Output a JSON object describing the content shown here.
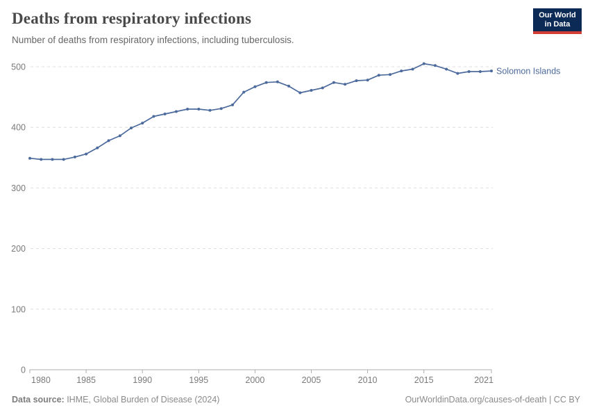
{
  "header": {
    "title": "Deaths from respiratory infections",
    "subtitle": "Number of deaths from respiratory infections, including tuberculosis.",
    "logo_line1": "Our World",
    "logo_line2": "in Data"
  },
  "chart_data": {
    "type": "line",
    "title": "Deaths from respiratory infections",
    "series": [
      {
        "name": "Solomon Islands",
        "x": [
          1980,
          1981,
          1982,
          1983,
          1984,
          1985,
          1986,
          1987,
          1988,
          1989,
          1990,
          1991,
          1992,
          1993,
          1994,
          1995,
          1996,
          1997,
          1998,
          1999,
          2000,
          2001,
          2002,
          2003,
          2004,
          2005,
          2006,
          2007,
          2008,
          2009,
          2010,
          2011,
          2012,
          2013,
          2014,
          2015,
          2016,
          2017,
          2018,
          2019,
          2020,
          2021
        ],
        "values": [
          349,
          347,
          347,
          347,
          351,
          356,
          366,
          378,
          386,
          399,
          407,
          418,
          422,
          426,
          430,
          430,
          428,
          431,
          437,
          458,
          467,
          474,
          475,
          468,
          457,
          461,
          465,
          474,
          471,
          477,
          478,
          486,
          487,
          493,
          496,
          505,
          502,
          496,
          489,
          492,
          492,
          493
        ]
      }
    ],
    "xlabel": "",
    "ylabel": "",
    "ylim": [
      0,
      500
    ],
    "yticks": [
      0,
      100,
      200,
      300,
      400,
      500
    ],
    "xticks": [
      1980,
      1985,
      1990,
      1995,
      2000,
      2005,
      2010,
      2015,
      2021
    ],
    "grid": "horizontal-dashed",
    "legend_position": "right-of-line-end",
    "entity_label": "Solomon Islands"
  },
  "footer": {
    "source_label": "Data source:",
    "source_text": " IHME, Global Burden of Disease (2024)",
    "credit": "OurWorldinData.org/causes-of-death | CC BY"
  },
  "colors": {
    "line": "#4C6A9C",
    "entity_label": "#4C6A9C",
    "gridline": "#dedede",
    "axis": "#adadad",
    "tick_text": "#7a7a7a",
    "logo_bg": "#0b2a55",
    "logo_bar": "#d43d33"
  }
}
